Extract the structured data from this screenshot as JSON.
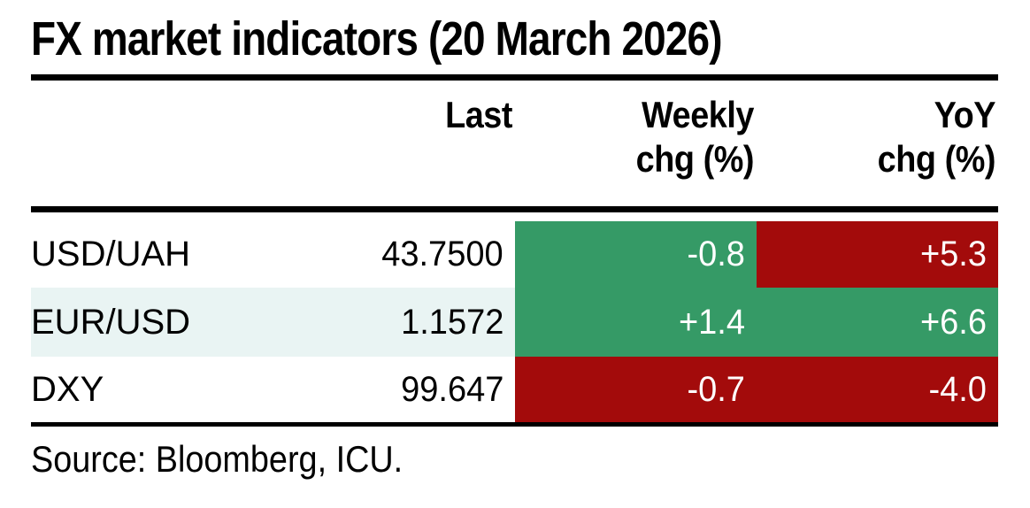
{
  "title": "FX market indicators (20 March 2026)",
  "colors": {
    "positive_green": "#359a66",
    "negative_red": "#a30b0b",
    "row_highlight": "#e9f4f3",
    "rule_black": "#000000"
  },
  "header": {
    "col_last": "Last",
    "col_weekly_line1": "Weekly",
    "col_weekly_line2": "chg (%)",
    "col_yoy_line1": "YoY",
    "col_yoy_line2": "chg (%)"
  },
  "chart_data": {
    "type": "table",
    "title": "FX market indicators (20 March 2026)",
    "columns": [
      "",
      "Last",
      "Weekly chg (%)",
      "YoY chg (%)"
    ],
    "rows": [
      {
        "label": "USD/UAH",
        "last": "43.7500",
        "weekly": "-0.8",
        "weekly_color": "green",
        "yoy": "+5.3",
        "yoy_color": "red",
        "highlight": false
      },
      {
        "label": "EUR/USD",
        "last": "1.1572",
        "weekly": "+1.4",
        "weekly_color": "green",
        "yoy": "+6.6",
        "yoy_color": "green",
        "highlight": true
      },
      {
        "label": "DXY",
        "last": "99.647",
        "weekly": "-0.7",
        "weekly_color": "red",
        "yoy": "-4.0",
        "yoy_color": "red",
        "highlight": false
      }
    ],
    "source": "Source: Bloomberg, ICU."
  },
  "source_note": "Source: Bloomberg, ICU."
}
